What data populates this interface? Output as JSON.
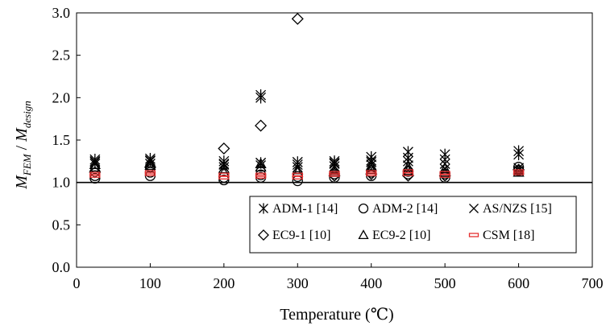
{
  "chart_data": {
    "type": "scatter",
    "xlabel": "Temperature (℃)",
    "ylabel": {
      "main1": "M",
      "sub1": "FEM",
      "slash": " / ",
      "main2": "M",
      "sub2": "design"
    },
    "xlim": [
      0,
      700
    ],
    "ylim": [
      0.0,
      3.0
    ],
    "xticks": [
      "0",
      "100",
      "200",
      "300",
      "400",
      "500",
      "600",
      "700"
    ],
    "yticks": [
      "0.0",
      "0.5",
      "1.0",
      "1.5",
      "2.0",
      "2.5",
      "3.0"
    ],
    "reference_line": 1.0,
    "grid": false,
    "legend_position": "bottom-right",
    "series": [
      {
        "name": "ADM-1 [14]",
        "marker": "asterisk",
        "color": "#000000",
        "points": [
          [
            25,
            1.24
          ],
          [
            25,
            1.27
          ],
          [
            100,
            1.26
          ],
          [
            100,
            1.28
          ],
          [
            200,
            1.21
          ],
          [
            200,
            1.25
          ],
          [
            250,
            2.0
          ],
          [
            250,
            2.03
          ],
          [
            250,
            1.23
          ],
          [
            300,
            1.24
          ],
          [
            350,
            1.23
          ],
          [
            350,
            1.25
          ],
          [
            400,
            1.26
          ],
          [
            400,
            1.3
          ],
          [
            450,
            1.29
          ],
          [
            450,
            1.36
          ],
          [
            500,
            1.27
          ],
          [
            500,
            1.33
          ],
          [
            600,
            1.33
          ],
          [
            600,
            1.37
          ]
        ]
      },
      {
        "name": "ADM-2 [14]",
        "marker": "circle",
        "color": "#000000",
        "points": [
          [
            25,
            1.05
          ],
          [
            25,
            1.08
          ],
          [
            100,
            1.08
          ],
          [
            100,
            1.12
          ],
          [
            200,
            1.03
          ],
          [
            200,
            1.06
          ],
          [
            250,
            1.06
          ],
          [
            250,
            1.09
          ],
          [
            300,
            1.02
          ],
          [
            300,
            1.07
          ],
          [
            350,
            1.06
          ],
          [
            350,
            1.1
          ],
          [
            400,
            1.08
          ],
          [
            400,
            1.12
          ],
          [
            450,
            1.1
          ],
          [
            450,
            1.13
          ],
          [
            500,
            1.06
          ],
          [
            500,
            1.1
          ],
          [
            600,
            1.14
          ],
          [
            600,
            1.18
          ]
        ]
      },
      {
        "name": "AS/NZS [15]",
        "marker": "x",
        "color": "#000000",
        "points": [
          [
            25,
            1.22
          ],
          [
            25,
            1.25
          ],
          [
            100,
            1.22
          ],
          [
            100,
            1.25
          ],
          [
            200,
            1.18
          ],
          [
            200,
            1.22
          ],
          [
            250,
            1.2
          ],
          [
            250,
            1.23
          ],
          [
            300,
            1.18
          ],
          [
            300,
            1.21
          ],
          [
            350,
            1.19
          ],
          [
            350,
            1.22
          ],
          [
            400,
            1.21
          ],
          [
            400,
            1.24
          ],
          [
            450,
            1.2
          ],
          [
            450,
            1.25
          ],
          [
            500,
            1.16
          ],
          [
            500,
            1.22
          ],
          [
            600,
            1.14
          ],
          [
            600,
            1.17
          ]
        ]
      },
      {
        "name": "EC9-1 [10]",
        "marker": "diamond",
        "color": "#000000",
        "points": [
          [
            25,
            1.12
          ],
          [
            100,
            1.18
          ],
          [
            200,
            1.4
          ],
          [
            250,
            1.67
          ],
          [
            300,
            2.93
          ],
          [
            350,
            1.08
          ],
          [
            400,
            1.1
          ],
          [
            450,
            1.08
          ],
          [
            500,
            1.08
          ],
          [
            600,
            1.15
          ]
        ]
      },
      {
        "name": "EC9-2 [10]",
        "marker": "triangle",
        "color": "#000000",
        "points": [
          [
            25,
            1.18
          ],
          [
            25,
            1.21
          ],
          [
            100,
            1.2
          ],
          [
            100,
            1.23
          ],
          [
            200,
            1.12
          ],
          [
            200,
            1.16
          ],
          [
            250,
            1.18
          ],
          [
            250,
            1.22
          ],
          [
            300,
            1.12
          ],
          [
            300,
            1.15
          ],
          [
            350,
            1.12
          ],
          [
            350,
            1.15
          ],
          [
            400,
            1.15
          ],
          [
            400,
            1.19
          ],
          [
            450,
            1.14
          ],
          [
            450,
            1.18
          ],
          [
            500,
            1.12
          ],
          [
            500,
            1.16
          ],
          [
            600,
            1.12
          ],
          [
            600,
            1.15
          ]
        ]
      },
      {
        "name": "CSM [18]",
        "marker": "bar",
        "color": "#e53030",
        "points": [
          [
            25,
            1.08
          ],
          [
            25,
            1.1
          ],
          [
            100,
            1.1
          ],
          [
            100,
            1.12
          ],
          [
            200,
            1.06
          ],
          [
            200,
            1.09
          ],
          [
            250,
            1.07
          ],
          [
            250,
            1.09
          ],
          [
            300,
            1.06
          ],
          [
            300,
            1.09
          ],
          [
            350,
            1.09
          ],
          [
            350,
            1.11
          ],
          [
            400,
            1.1
          ],
          [
            400,
            1.12
          ],
          [
            450,
            1.1
          ],
          [
            450,
            1.13
          ],
          [
            500,
            1.08
          ],
          [
            500,
            1.11
          ],
          [
            600,
            1.11
          ],
          [
            600,
            1.13
          ]
        ]
      }
    ]
  }
}
